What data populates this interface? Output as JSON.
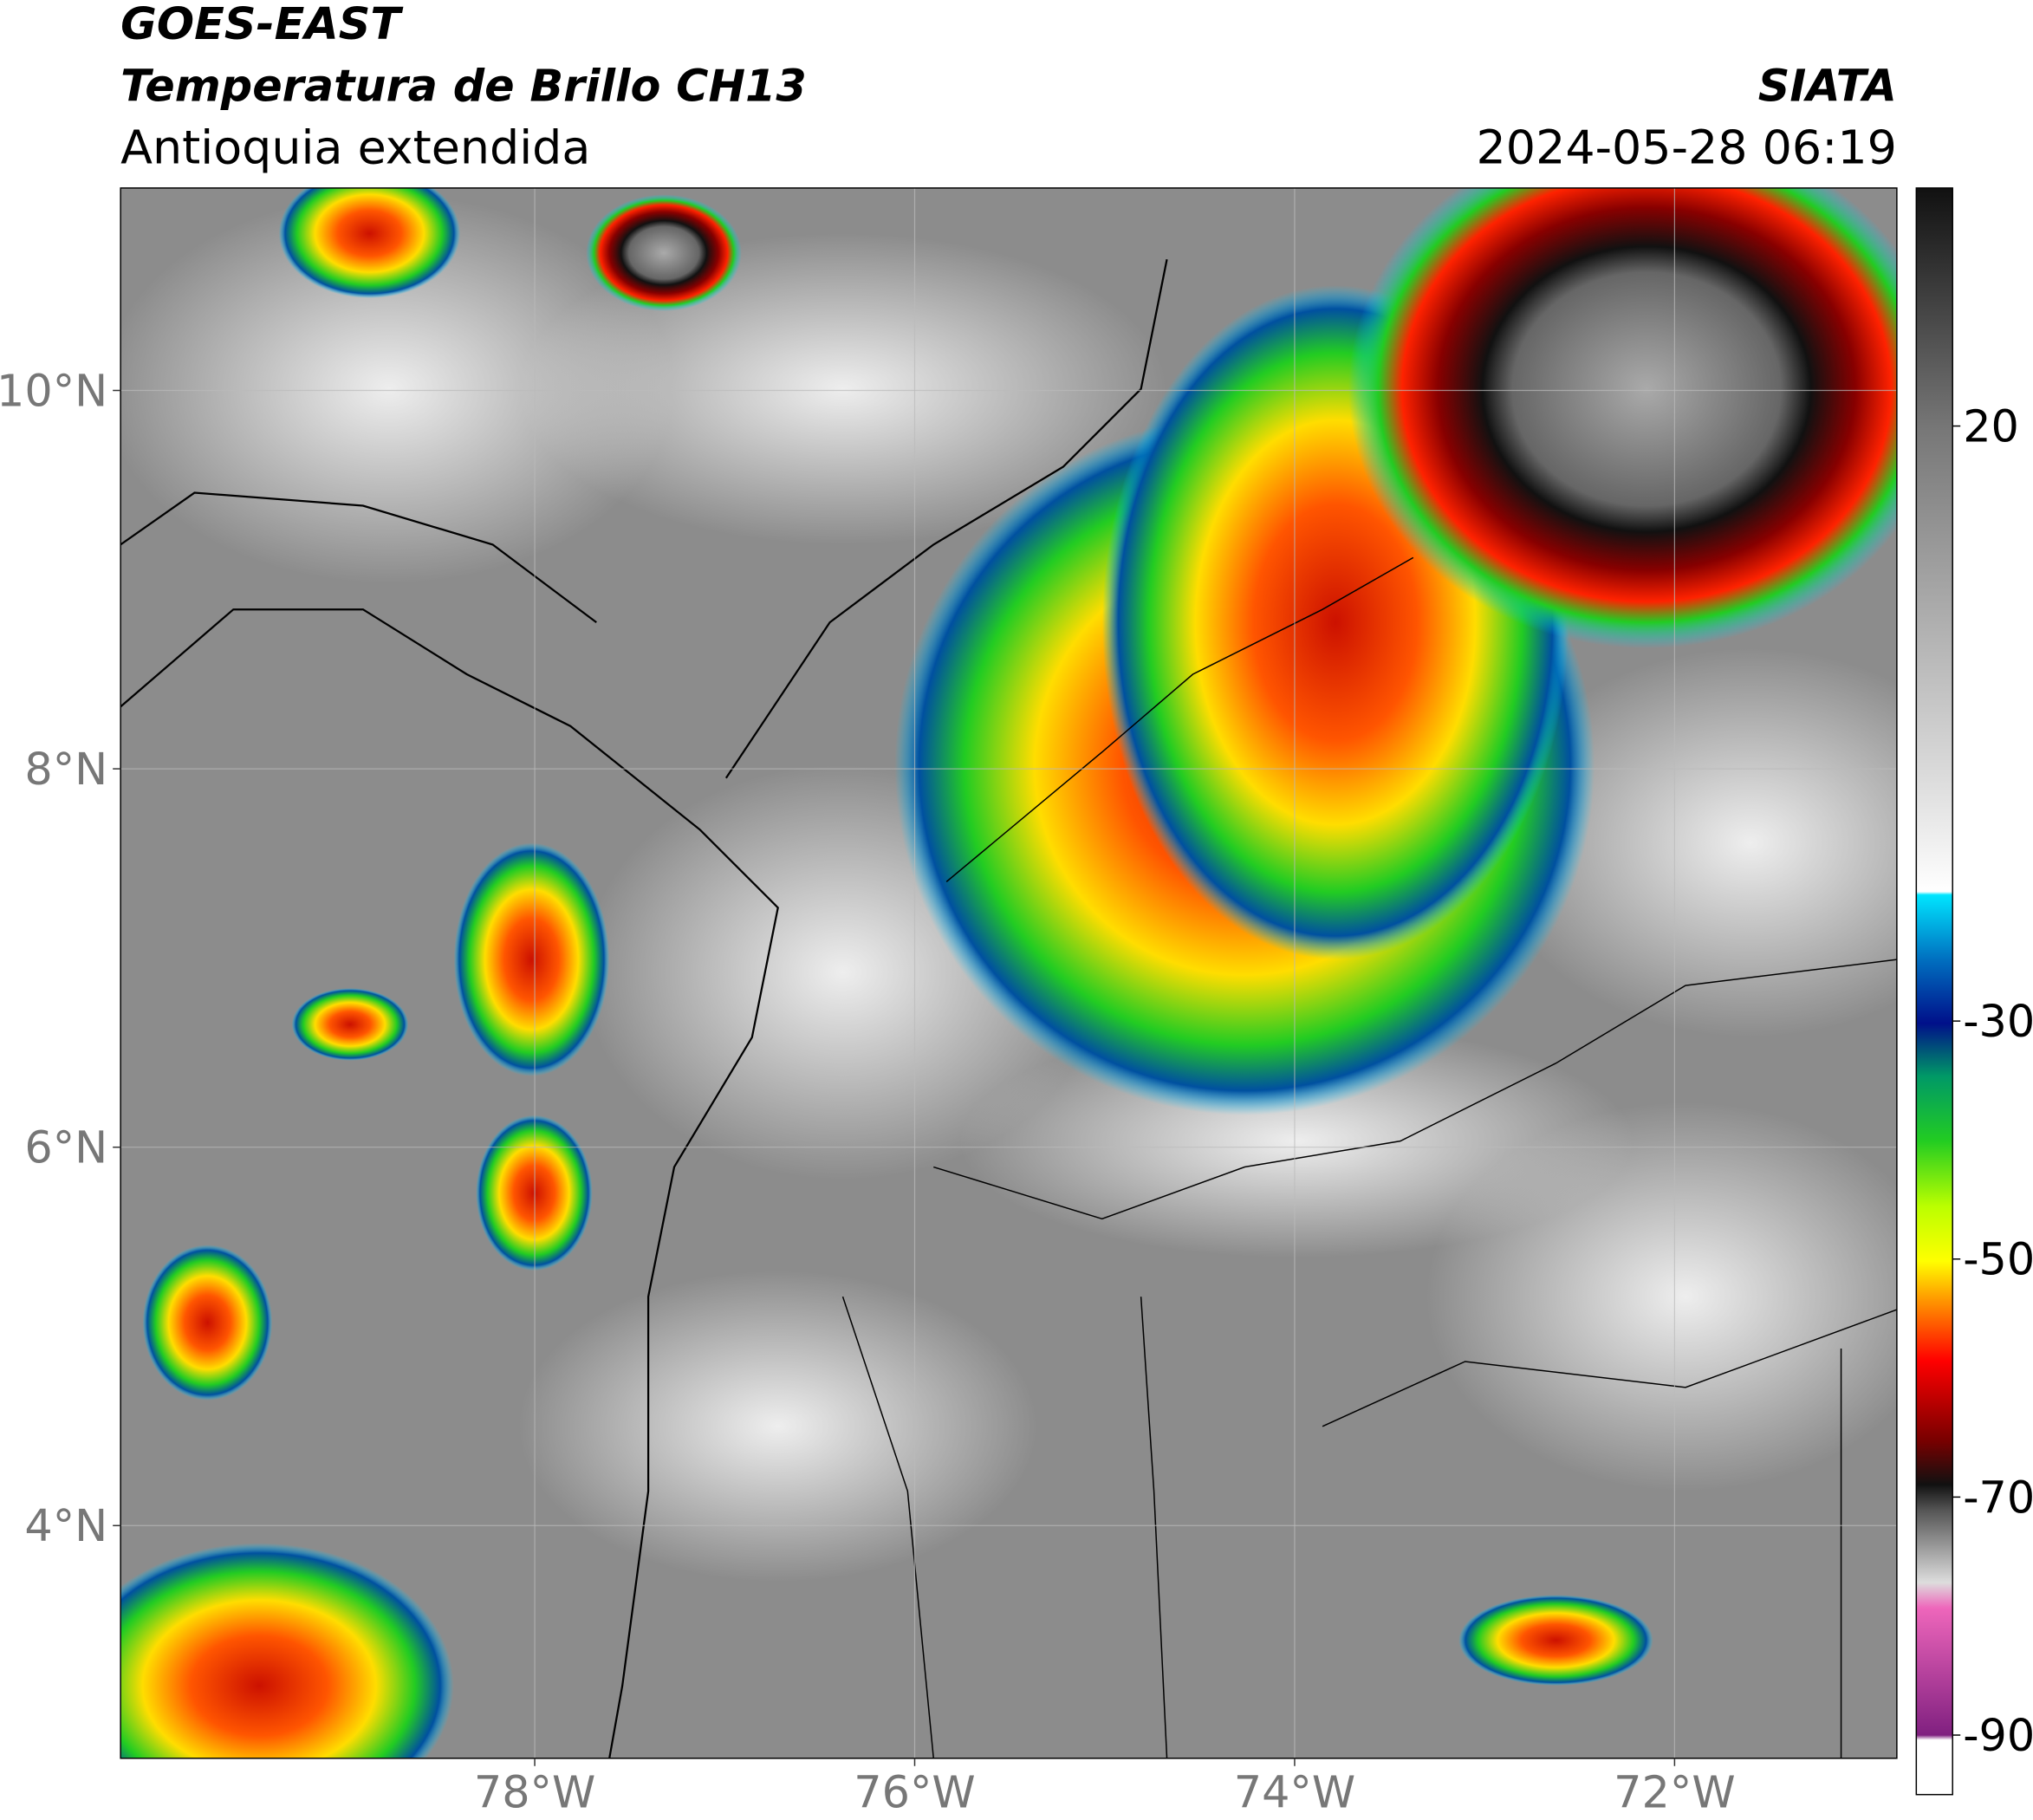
{
  "header": {
    "satellite": "GOES-EAST",
    "product": "Temperatura de Brillo CH13",
    "region": "Antioquia extendida",
    "source": "SIATA",
    "datetime": "2024-05-28 06:19"
  },
  "map": {
    "xlim": [
      -80.18,
      -70.83
    ],
    "ylim": [
      2.77,
      11.07
    ],
    "xticks": [
      {
        "value": -78,
        "label": "78°W"
      },
      {
        "value": -76,
        "label": "76°W"
      },
      {
        "value": -74,
        "label": "74°W"
      },
      {
        "value": -72,
        "label": "72°W"
      }
    ],
    "yticks": [
      {
        "value": 4,
        "label": "4°N"
      },
      {
        "value": 6,
        "label": "6°N"
      },
      {
        "value": 8,
        "label": "8°N"
      },
      {
        "value": 10,
        "label": "10°N"
      }
    ],
    "grid": true
  },
  "colorbar": {
    "lim": [
      -95,
      40
    ],
    "ticks": [
      -90,
      -70,
      -50,
      -30,
      20
    ]
  }
}
